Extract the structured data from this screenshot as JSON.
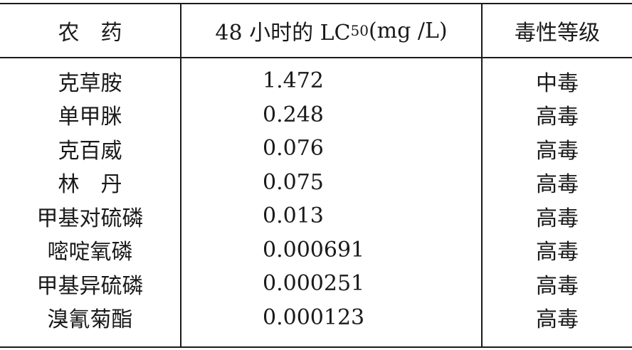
{
  "table": {
    "headers": {
      "pesticide": "农　药",
      "lc50_prefix": "48 小时的 LC",
      "lc50_sub": "50",
      "lc50_unit": "(mg /L)",
      "toxicity": "毒性等级"
    },
    "rows": [
      {
        "name": "克草胺",
        "lc50": "1.472",
        "level": "中毒"
      },
      {
        "name": "单甲脒",
        "lc50": "0.248",
        "level": "高毒"
      },
      {
        "name": "克百威",
        "lc50": "0.076",
        "level": "高毒"
      },
      {
        "name": "林　丹",
        "lc50": "0.075",
        "level": "高毒"
      },
      {
        "name": "甲基对硫磷",
        "lc50": "0.013",
        "level": "高毒"
      },
      {
        "name": "嘧啶氧磷",
        "lc50": "0.000691",
        "level": "高毒"
      },
      {
        "name": "甲基异硫磷",
        "lc50": "0.000251",
        "level": "高毒"
      },
      {
        "name": "溴氰菊酯",
        "lc50": "0.000123",
        "level": "高毒"
      }
    ]
  }
}
